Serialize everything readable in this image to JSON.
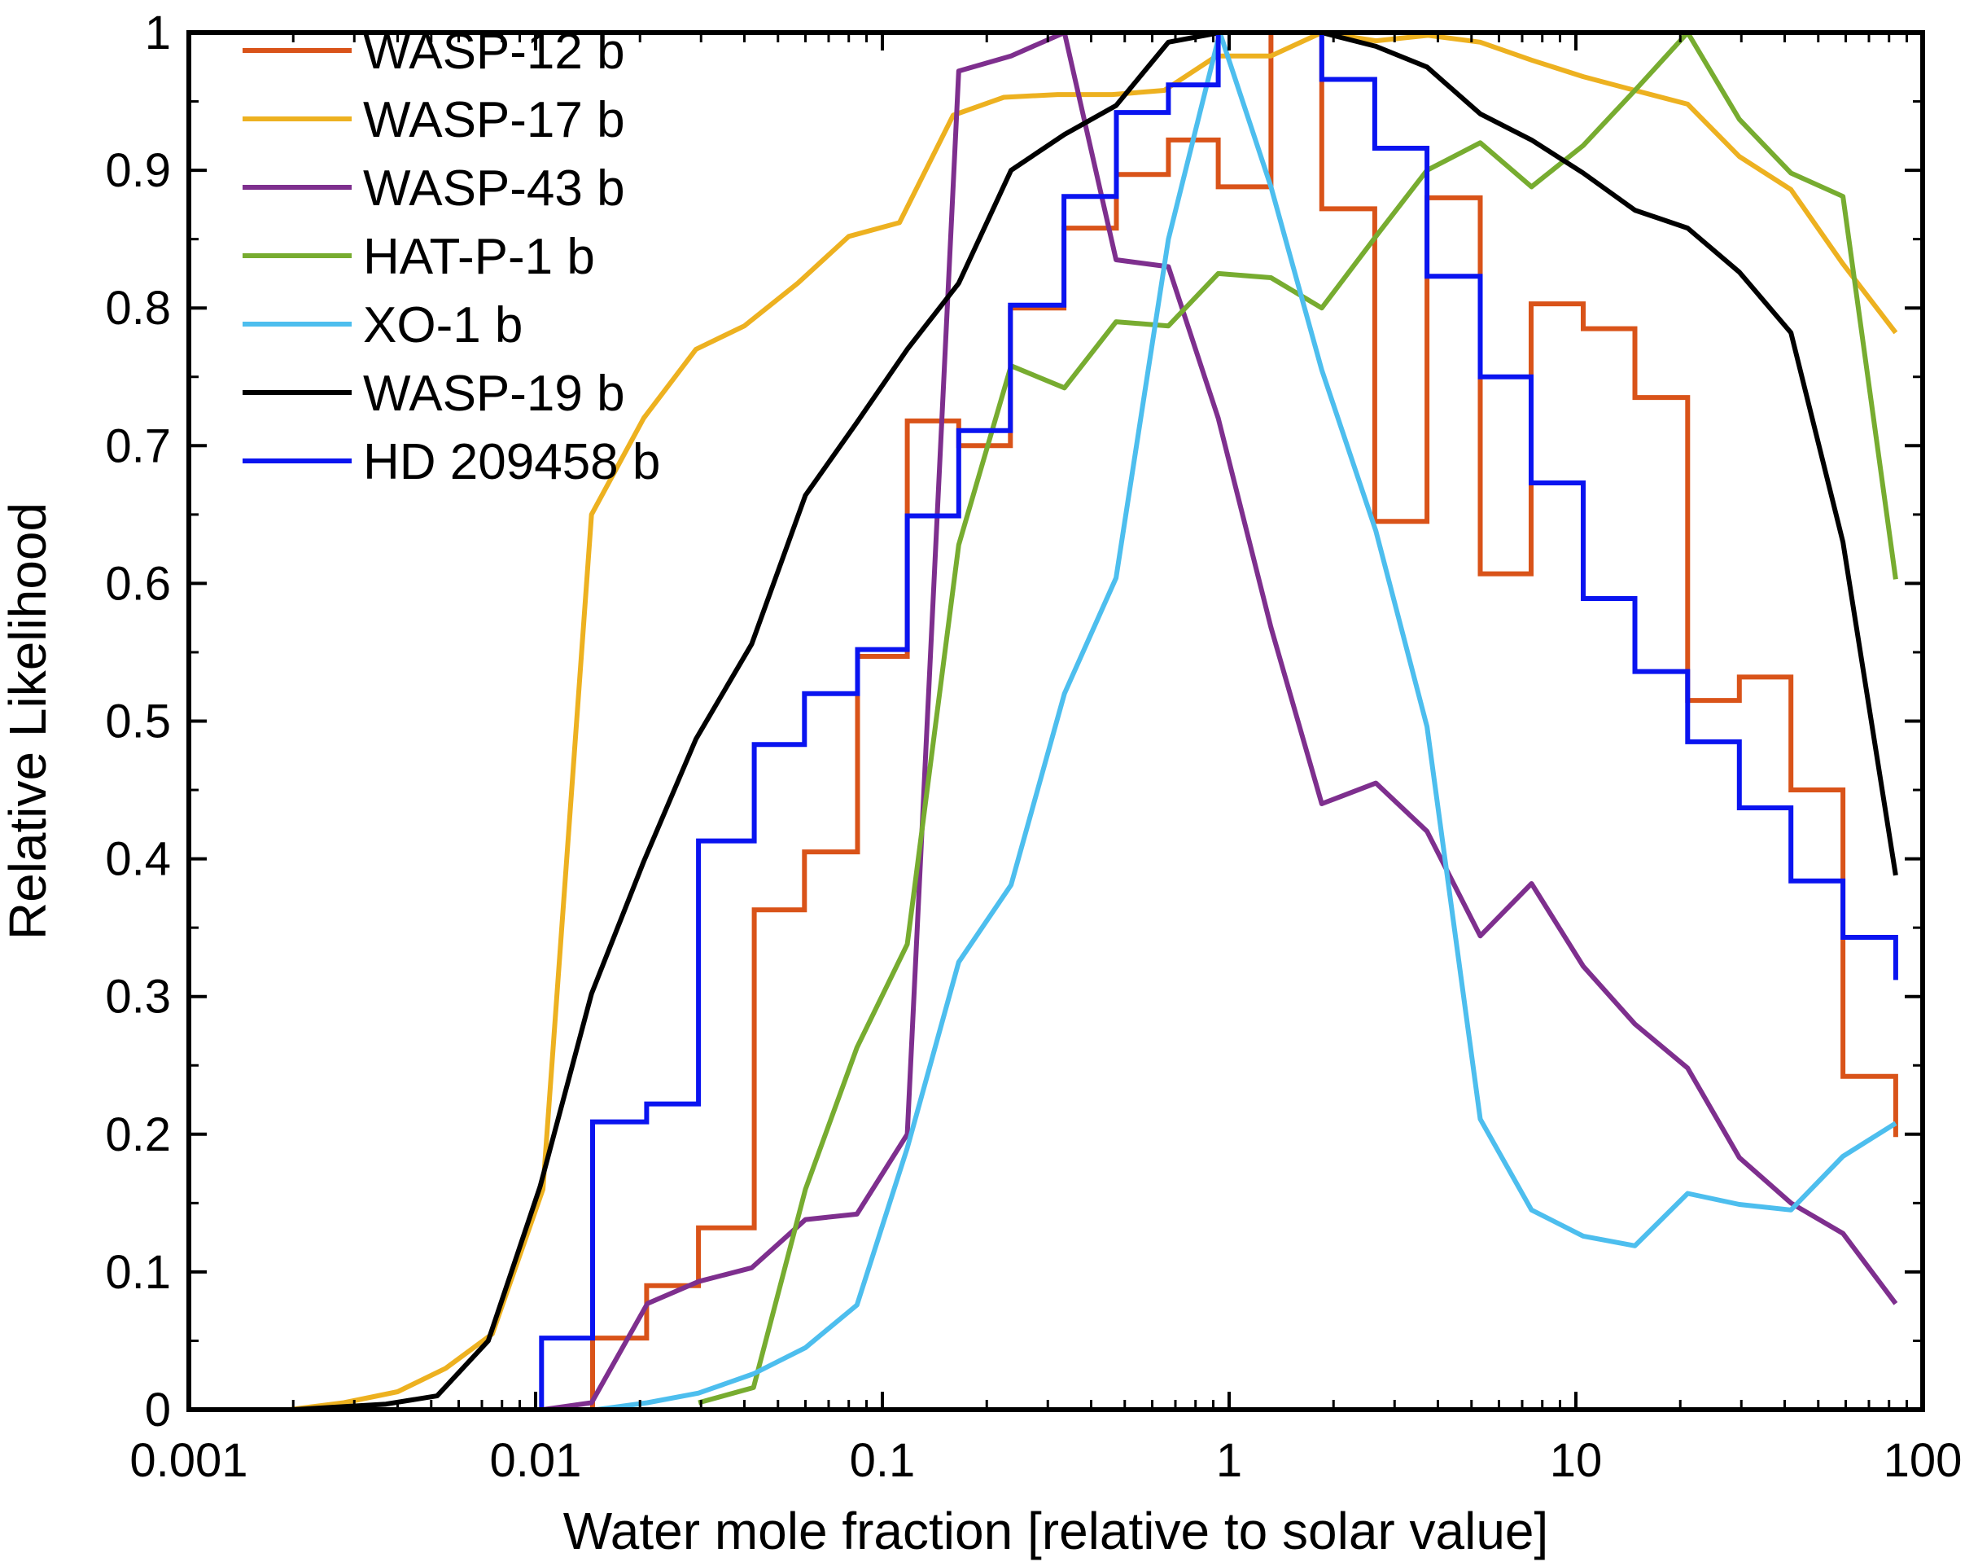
{
  "chart_data": {
    "type": "line",
    "title": "",
    "xlabel": "Water mole fraction [relative to solar value]",
    "ylabel": "Relative Likelihood",
    "xscale": "log",
    "xlim": [
      0.001,
      100
    ],
    "ylim": [
      0,
      1.0
    ],
    "x_tick_values": [
      0.001,
      0.01,
      0.1,
      1,
      10,
      100
    ],
    "x_tick_labels": [
      "0.001",
      "0.01",
      "0.1",
      "1",
      "10",
      "100"
    ],
    "y_tick_values": [
      0,
      0.1,
      0.2,
      0.3,
      0.4,
      0.5,
      0.6,
      0.7,
      0.8,
      0.9,
      1.0
    ],
    "y_tick_labels": [
      "0",
      "0.1",
      "0.2",
      "0.3",
      "0.4",
      "0.5",
      "0.6",
      "0.7",
      "0.8",
      "0.9",
      "1"
    ],
    "legend_position": "top-left",
    "series": [
      {
        "name": "WASP-12 b",
        "color": "#d95319",
        "style": "step",
        "points": [
          [
            0.0146,
            0
          ],
          [
            0.0146,
            0.052
          ],
          [
            0.0209,
            0.052
          ],
          [
            0.0209,
            0.09
          ],
          [
            0.0295,
            0.09
          ],
          [
            0.0295,
            0.132
          ],
          [
            0.0427,
            0.132
          ],
          [
            0.0427,
            0.363
          ],
          [
            0.0596,
            0.363
          ],
          [
            0.0596,
            0.405
          ],
          [
            0.0848,
            0.405
          ],
          [
            0.0848,
            0.547
          ],
          [
            0.118,
            0.547
          ],
          [
            0.118,
            0.718
          ],
          [
            0.166,
            0.718
          ],
          [
            0.166,
            0.7
          ],
          [
            0.234,
            0.7
          ],
          [
            0.234,
            0.8
          ],
          [
            0.334,
            0.8
          ],
          [
            0.334,
            0.858
          ],
          [
            0.473,
            0.858
          ],
          [
            0.473,
            0.897
          ],
          [
            0.668,
            0.897
          ],
          [
            0.668,
            0.922
          ],
          [
            0.93,
            0.922
          ],
          [
            0.93,
            0.888
          ],
          [
            1.32,
            0.888
          ],
          [
            1.32,
            1.0
          ],
          [
            1.85,
            1.0
          ],
          [
            1.85,
            0.872
          ],
          [
            2.63,
            0.872
          ],
          [
            2.63,
            0.645
          ],
          [
            3.72,
            0.645
          ],
          [
            3.72,
            0.88
          ],
          [
            5.3,
            0.88
          ],
          [
            5.3,
            0.607
          ],
          [
            7.43,
            0.607
          ],
          [
            7.43,
            0.803
          ],
          [
            10.5,
            0.803
          ],
          [
            10.5,
            0.785
          ],
          [
            14.8,
            0.785
          ],
          [
            14.8,
            0.735
          ],
          [
            21.0,
            0.735
          ],
          [
            21.0,
            0.515
          ],
          [
            29.6,
            0.515
          ],
          [
            29.6,
            0.532
          ],
          [
            41.7,
            0.532
          ],
          [
            41.7,
            0.45
          ],
          [
            58.9,
            0.45
          ],
          [
            58.9,
            0.242
          ],
          [
            83.6,
            0.242
          ],
          [
            83.6,
            0.198
          ]
        ]
      },
      {
        "name": "WASP-17 b",
        "color": "#edb120",
        "style": "line",
        "points": [
          [
            0.001,
            0.0
          ],
          [
            0.00195,
            0.0
          ],
          [
            0.0028,
            0.005
          ],
          [
            0.004,
            0.013
          ],
          [
            0.0055,
            0.03
          ],
          [
            0.0075,
            0.055
          ],
          [
            0.0105,
            0.16
          ],
          [
            0.0145,
            0.65
          ],
          [
            0.0205,
            0.72
          ],
          [
            0.029,
            0.77
          ],
          [
            0.04,
            0.787
          ],
          [
            0.057,
            0.818
          ],
          [
            0.08,
            0.852
          ],
          [
            0.112,
            0.862
          ],
          [
            0.16,
            0.94
          ],
          [
            0.224,
            0.953
          ],
          [
            0.32,
            0.955
          ],
          [
            0.46,
            0.955
          ],
          [
            0.65,
            0.958
          ],
          [
            0.92,
            0.983
          ],
          [
            1.32,
            0.983
          ],
          [
            1.85,
            1.0
          ],
          [
            2.65,
            0.994
          ],
          [
            3.75,
            0.998
          ],
          [
            5.3,
            0.993
          ],
          [
            7.45,
            0.98
          ],
          [
            10.5,
            0.968
          ],
          [
            14.8,
            0.958
          ],
          [
            21.0,
            0.948
          ],
          [
            29.6,
            0.91
          ],
          [
            41.7,
            0.886
          ],
          [
            58.9,
            0.832
          ],
          [
            83.6,
            0.782
          ]
        ]
      },
      {
        "name": "WASP-43 b",
        "color": "#7e2f8e",
        "style": "line",
        "points": [
          [
            0.0035,
            0.0
          ],
          [
            0.0105,
            0.0
          ],
          [
            0.0145,
            0.005
          ],
          [
            0.021,
            0.077
          ],
          [
            0.0295,
            0.093
          ],
          [
            0.042,
            0.103
          ],
          [
            0.06,
            0.138
          ],
          [
            0.0845,
            0.142
          ],
          [
            0.118,
            0.2
          ],
          [
            0.166,
            0.972
          ],
          [
            0.235,
            0.983
          ],
          [
            0.335,
            1.0
          ],
          [
            0.472,
            0.835
          ],
          [
            0.668,
            0.83
          ],
          [
            0.93,
            0.72
          ],
          [
            1.32,
            0.568
          ],
          [
            1.85,
            0.44
          ],
          [
            2.65,
            0.455
          ],
          [
            3.72,
            0.42
          ],
          [
            5.3,
            0.344
          ],
          [
            7.45,
            0.382
          ],
          [
            10.5,
            0.322
          ],
          [
            14.8,
            0.28
          ],
          [
            21.0,
            0.248
          ],
          [
            29.6,
            0.183
          ],
          [
            41.7,
            0.15
          ],
          [
            58.9,
            0.128
          ],
          [
            83.6,
            0.077
          ]
        ]
      },
      {
        "name": "HAT-P-1 b",
        "color": "#77ac30",
        "style": "line",
        "points": [
          [
            0.0295,
            0.005
          ],
          [
            0.0425,
            0.016
          ],
          [
            0.06,
            0.16
          ],
          [
            0.0845,
            0.263
          ],
          [
            0.118,
            0.338
          ],
          [
            0.166,
            0.628
          ],
          [
            0.235,
            0.758
          ],
          [
            0.335,
            0.742
          ],
          [
            0.472,
            0.79
          ],
          [
            0.668,
            0.787
          ],
          [
            0.93,
            0.825
          ],
          [
            1.32,
            0.822
          ],
          [
            1.85,
            0.8
          ],
          [
            2.65,
            0.852
          ],
          [
            3.72,
            0.9
          ],
          [
            5.3,
            0.92
          ],
          [
            7.45,
            0.888
          ],
          [
            10.5,
            0.918
          ],
          [
            14.8,
            0.958
          ],
          [
            21.0,
            1.0
          ],
          [
            29.6,
            0.937
          ],
          [
            41.7,
            0.898
          ],
          [
            58.9,
            0.881
          ],
          [
            83.6,
            0.603
          ]
        ]
      },
      {
        "name": "XO-1 b",
        "color": "#4dbeee",
        "style": "line",
        "points": [
          [
            0.015,
            0.0
          ],
          [
            0.021,
            0.005
          ],
          [
            0.0295,
            0.012
          ],
          [
            0.0425,
            0.026
          ],
          [
            0.06,
            0.045
          ],
          [
            0.0845,
            0.076
          ],
          [
            0.118,
            0.19
          ],
          [
            0.166,
            0.325
          ],
          [
            0.235,
            0.381
          ],
          [
            0.335,
            0.52
          ],
          [
            0.472,
            0.604
          ],
          [
            0.668,
            0.85
          ],
          [
            0.94,
            1.0
          ],
          [
            1.32,
            0.888
          ],
          [
            1.85,
            0.755
          ],
          [
            2.65,
            0.638
          ],
          [
            3.72,
            0.496
          ],
          [
            5.3,
            0.211
          ],
          [
            7.45,
            0.145
          ],
          [
            10.5,
            0.126
          ],
          [
            14.8,
            0.119
          ],
          [
            21.0,
            0.157
          ],
          [
            29.6,
            0.149
          ],
          [
            41.7,
            0.145
          ],
          [
            58.9,
            0.184
          ],
          [
            83.6,
            0.208
          ]
        ]
      },
      {
        "name": "WASP-19 b",
        "color": "#000000",
        "style": "line",
        "points": [
          [
            0.001,
            0.0
          ],
          [
            0.002,
            0.0
          ],
          [
            0.0037,
            0.004
          ],
          [
            0.0052,
            0.01
          ],
          [
            0.0073,
            0.05
          ],
          [
            0.0103,
            0.162
          ],
          [
            0.0145,
            0.302
          ],
          [
            0.0205,
            0.398
          ],
          [
            0.029,
            0.487
          ],
          [
            0.042,
            0.556
          ],
          [
            0.06,
            0.664
          ],
          [
            0.0845,
            0.717
          ],
          [
            0.118,
            0.77
          ],
          [
            0.166,
            0.818
          ],
          [
            0.235,
            0.9
          ],
          [
            0.335,
            0.926
          ],
          [
            0.472,
            0.947
          ],
          [
            0.668,
            0.993
          ],
          [
            0.94,
            1.0
          ],
          [
            1.85,
            1.0
          ],
          [
            2.65,
            0.99
          ],
          [
            3.72,
            0.975
          ],
          [
            5.3,
            0.941
          ],
          [
            7.45,
            0.922
          ],
          [
            10.5,
            0.898
          ],
          [
            14.8,
            0.871
          ],
          [
            21.0,
            0.858
          ],
          [
            29.6,
            0.826
          ],
          [
            41.7,
            0.782
          ],
          [
            58.9,
            0.63
          ],
          [
            83.6,
            0.388
          ]
        ]
      },
      {
        "name": "HD 209458 b",
        "color": "#0a14f0",
        "style": "step",
        "points": [
          [
            0.0104,
            0
          ],
          [
            0.0104,
            0.052
          ],
          [
            0.0146,
            0.052
          ],
          [
            0.0146,
            0.209
          ],
          [
            0.0209,
            0.209
          ],
          [
            0.0209,
            0.222
          ],
          [
            0.0295,
            0.222
          ],
          [
            0.0295,
            0.413
          ],
          [
            0.0427,
            0.413
          ],
          [
            0.0427,
            0.483
          ],
          [
            0.0596,
            0.483
          ],
          [
            0.0596,
            0.52
          ],
          [
            0.0848,
            0.52
          ],
          [
            0.0848,
            0.552
          ],
          [
            0.118,
            0.552
          ],
          [
            0.118,
            0.649
          ],
          [
            0.166,
            0.649
          ],
          [
            0.166,
            0.711
          ],
          [
            0.234,
            0.711
          ],
          [
            0.234,
            0.802
          ],
          [
            0.334,
            0.802
          ],
          [
            0.334,
            0.881
          ],
          [
            0.473,
            0.881
          ],
          [
            0.473,
            0.942
          ],
          [
            0.668,
            0.942
          ],
          [
            0.668,
            0.962
          ],
          [
            0.93,
            0.962
          ],
          [
            0.93,
            1.0
          ],
          [
            1.32,
            1.0
          ],
          [
            1.85,
            1.0
          ],
          [
            1.85,
            0.966
          ],
          [
            2.63,
            0.966
          ],
          [
            2.63,
            0.916
          ],
          [
            3.72,
            0.916
          ],
          [
            3.72,
            0.823
          ],
          [
            5.3,
            0.823
          ],
          [
            5.3,
            0.75
          ],
          [
            7.43,
            0.75
          ],
          [
            7.43,
            0.673
          ],
          [
            10.5,
            0.673
          ],
          [
            10.5,
            0.589
          ],
          [
            14.8,
            0.589
          ],
          [
            14.8,
            0.536
          ],
          [
            21.0,
            0.536
          ],
          [
            21.0,
            0.485
          ],
          [
            29.6,
            0.485
          ],
          [
            29.6,
            0.437
          ],
          [
            41.7,
            0.437
          ],
          [
            41.7,
            0.384
          ],
          [
            58.9,
            0.384
          ],
          [
            58.9,
            0.343
          ],
          [
            83.6,
            0.343
          ],
          [
            83.6,
            0.312
          ]
        ]
      }
    ]
  }
}
